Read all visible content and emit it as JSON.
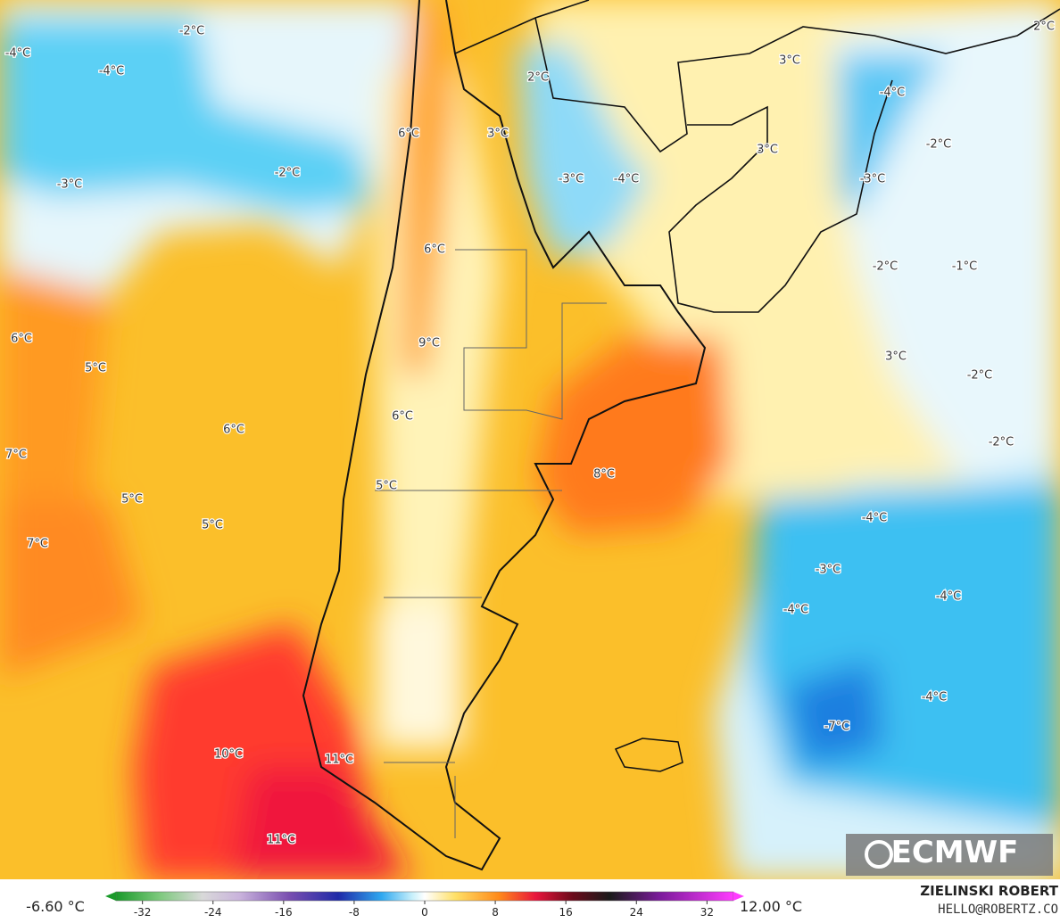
{
  "map": {
    "labels": [
      "2°C",
      "-2°C",
      "-4°C",
      "-4°C",
      "3°C",
      "2°C",
      "-4°C",
      "6°C",
      "3°C",
      "3°C",
      "-2°C",
      "-2°C",
      "-3°C",
      "-3°C",
      "-4°C",
      "-3°C",
      "6°C",
      "-2°C",
      "-1°C",
      "6°C",
      "9°C",
      "5°C",
      "3°C",
      "-2°C",
      "6°C",
      "6°C",
      "-2°C",
      "7°C",
      "8°C",
      "5°C",
      "5°C",
      "-4°C",
      "5°C",
      "7°C",
      "-3°C",
      "-4°C",
      "-4°C",
      "-4°C",
      "-7°C",
      "10°C",
      "11°C",
      "11°C"
    ]
  },
  "logo": "ECMWF",
  "colorbar": {
    "min_label": "-6.60 °C",
    "max_label": "12.00 °C",
    "range": [
      -35,
      35
    ],
    "ticks": [
      -32,
      -24,
      -16,
      -8,
      0,
      8,
      16,
      24,
      32
    ]
  },
  "credits": {
    "author": "ZIELINSKI ROBERT",
    "contact": "HELLO@ROBERTZ.CO"
  }
}
